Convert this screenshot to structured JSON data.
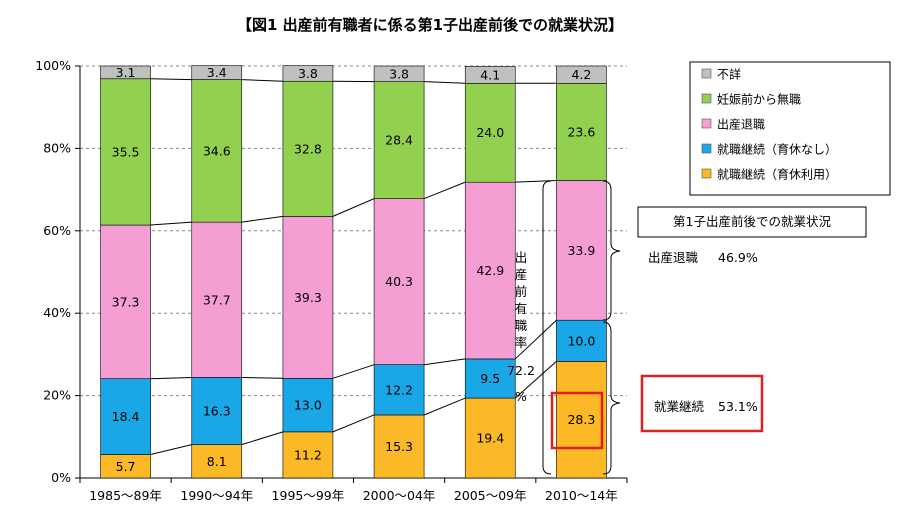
{
  "chart_data": {
    "type": "bar",
    "stacked": true,
    "title": "【図1 出産前有職者に係る第1子出産前後での就業状況】",
    "categories": [
      "1985～89年",
      "1990～94年",
      "1995～99年",
      "2000～04年",
      "2005～09年",
      "2010～14年"
    ],
    "series": [
      {
        "name": "就職継続（育休利用）",
        "color": "#fbb827",
        "values": [
          5.7,
          8.1,
          11.2,
          15.3,
          19.4,
          28.3
        ]
      },
      {
        "name": "就職継続（育休なし）",
        "color": "#1aa7e8",
        "values": [
          18.4,
          16.3,
          13.0,
          12.2,
          9.5,
          10.0
        ]
      },
      {
        "name": "出産退職",
        "color": "#f49ed4",
        "values": [
          37.3,
          37.7,
          39.3,
          40.3,
          42.9,
          33.9
        ]
      },
      {
        "name": "妊娠前から無職",
        "color": "#92d050",
        "values": [
          35.5,
          34.6,
          32.8,
          28.4,
          24.0,
          23.6
        ]
      },
      {
        "name": "不詳",
        "color": "#c0c0c0",
        "values": [
          3.1,
          3.4,
          3.8,
          3.8,
          4.1,
          4.2
        ]
      }
    ],
    "value_labels": [
      [
        "5.7",
        "8.1",
        "11.2",
        "15.3",
        "19.4",
        "28.3"
      ],
      [
        "18.4",
        "16.3",
        "13.0",
        "12.2",
        "9.5",
        "10.0"
      ],
      [
        "37.3",
        "37.7",
        "39.3",
        "40.3",
        "42.9",
        "33.9"
      ],
      [
        "35.5",
        "34.6",
        "32.8",
        "28.4",
        "24.0",
        "23.6"
      ],
      [
        "3.1",
        "3.4",
        "3.8",
        "3.8",
        "4.1",
        "4.2"
      ]
    ],
    "ylim": [
      0,
      100
    ],
    "yticks": [
      "0%",
      "20%",
      "40%",
      "60%",
      "80%",
      "100%"
    ],
    "grid": true,
    "legend_position": "top-right",
    "legend_order": [
      "不詳",
      "妊娠前から無職",
      "出産退職",
      "就職継続（育休なし）",
      "就職継続（育休利用）"
    ],
    "annotations": {
      "vertical_label": [
        "出",
        "産",
        "前",
        "有",
        "職",
        "率"
      ],
      "vertical_value": "72.2",
      "vertical_unit": "%",
      "box_title": "第1子出産前後での就業状況",
      "retire_label": "出産退職",
      "retire_value": "46.9%",
      "continue_label": "就業継続",
      "continue_value": "53.1%",
      "highlight_color": "#e02020"
    }
  }
}
